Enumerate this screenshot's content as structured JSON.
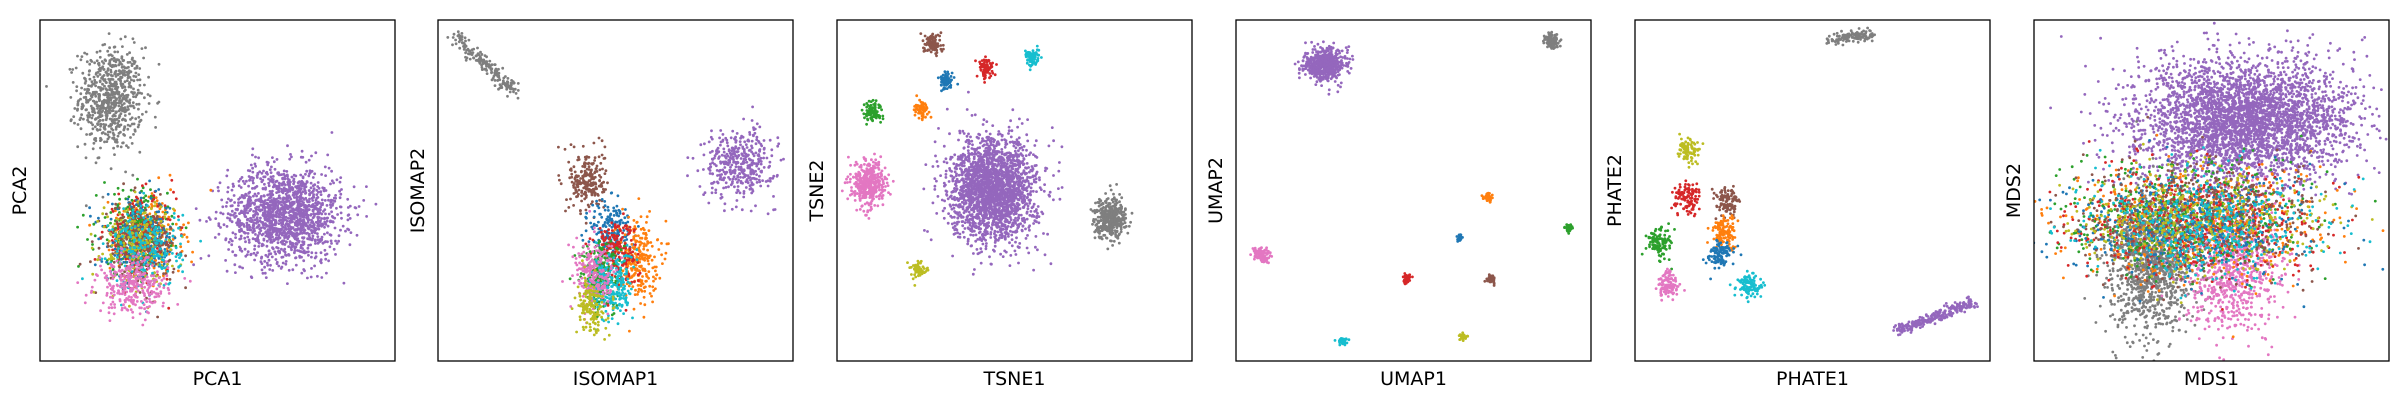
{
  "palette": {
    "blue": "#1f77b4",
    "orange": "#ff7f0e",
    "green": "#2ca02c",
    "red": "#d62728",
    "purple": "#9467bd",
    "brown": "#8c564b",
    "pink": "#e377c2",
    "gray": "#7f7f7f",
    "olive": "#bcbd22",
    "cyan": "#17becf"
  },
  "chart_data": [
    {
      "type": "scatter",
      "title": "",
      "xlabel": "PCA1",
      "ylabel": "PCA2",
      "xlim": [
        0,
        1
      ],
      "ylim": [
        0,
        1
      ],
      "grid": false,
      "ticks": false,
      "clusters": [
        {
          "color": "gray",
          "center": [
            0.2,
            0.77
          ],
          "spread": [
            0.045,
            0.075
          ],
          "n": 700
        },
        {
          "color": "purple",
          "center": [
            0.69,
            0.43
          ],
          "spread": [
            0.08,
            0.07
          ],
          "n": 1500
        },
        {
          "color": "orange",
          "center": [
            0.3,
            0.37
          ],
          "spread": [
            0.05,
            0.06
          ],
          "n": 250
        },
        {
          "color": "green",
          "center": [
            0.26,
            0.38
          ],
          "spread": [
            0.05,
            0.06
          ],
          "n": 250
        },
        {
          "color": "red",
          "center": [
            0.28,
            0.36
          ],
          "spread": [
            0.05,
            0.06
          ],
          "n": 220
        },
        {
          "color": "blue",
          "center": [
            0.29,
            0.35
          ],
          "spread": [
            0.05,
            0.06
          ],
          "n": 220
        },
        {
          "color": "brown",
          "center": [
            0.28,
            0.34
          ],
          "spread": [
            0.05,
            0.06
          ],
          "n": 220
        },
        {
          "color": "olive",
          "center": [
            0.27,
            0.35
          ],
          "spread": [
            0.05,
            0.06
          ],
          "n": 200
        },
        {
          "color": "cyan",
          "center": [
            0.3,
            0.33
          ],
          "spread": [
            0.05,
            0.06
          ],
          "n": 200
        },
        {
          "color": "pink",
          "center": [
            0.26,
            0.22
          ],
          "spread": [
            0.05,
            0.04
          ],
          "n": 300
        }
      ]
    },
    {
      "type": "scatter",
      "title": "",
      "xlabel": "ISOMAP1",
      "ylabel": "ISOMAP2",
      "xlim": [
        0,
        1
      ],
      "ylim": [
        0,
        1
      ],
      "grid": false,
      "ticks": false,
      "clusters": [
        {
          "color": "gray",
          "shape": "line",
          "from": [
            0.05,
            0.95
          ],
          "to": [
            0.22,
            0.79
          ],
          "spread": [
            0.012,
            0.012
          ],
          "n": 180
        },
        {
          "color": "purple",
          "center": [
            0.85,
            0.58
          ],
          "spread": [
            0.05,
            0.05
          ],
          "n": 400
        },
        {
          "color": "brown",
          "center": [
            0.42,
            0.53
          ],
          "spread": [
            0.025,
            0.045
          ],
          "n": 220
        },
        {
          "color": "blue",
          "center": [
            0.49,
            0.38
          ],
          "spread": [
            0.03,
            0.05
          ],
          "n": 200
        },
        {
          "color": "orange",
          "center": [
            0.56,
            0.3
          ],
          "spread": [
            0.03,
            0.06
          ],
          "n": 250
        },
        {
          "color": "red",
          "center": [
            0.5,
            0.32
          ],
          "spread": [
            0.03,
            0.05
          ],
          "n": 200
        },
        {
          "color": "green",
          "center": [
            0.46,
            0.25
          ],
          "spread": [
            0.03,
            0.05
          ],
          "n": 220
        },
        {
          "color": "cyan",
          "center": [
            0.49,
            0.22
          ],
          "spread": [
            0.03,
            0.05
          ],
          "n": 220
        },
        {
          "color": "pink",
          "center": [
            0.44,
            0.25
          ],
          "spread": [
            0.03,
            0.05
          ],
          "n": 200
        },
        {
          "color": "olive",
          "center": [
            0.43,
            0.16
          ],
          "spread": [
            0.02,
            0.04
          ],
          "n": 150
        }
      ]
    },
    {
      "type": "scatter",
      "title": "",
      "xlabel": "TSNE1",
      "ylabel": "TSNE2",
      "xlim": [
        0,
        1
      ],
      "ylim": [
        0,
        1
      ],
      "grid": false,
      "ticks": false,
      "clusters": [
        {
          "color": "purple",
          "center": [
            0.44,
            0.5
          ],
          "spread": [
            0.06,
            0.075
          ],
          "n": 2200
        },
        {
          "color": "gray",
          "center": [
            0.77,
            0.42
          ],
          "spread": [
            0.022,
            0.03
          ],
          "n": 400
        },
        {
          "color": "pink",
          "center": [
            0.09,
            0.52
          ],
          "spread": [
            0.024,
            0.033
          ],
          "n": 400
        },
        {
          "color": "brown",
          "center": [
            0.27,
            0.93
          ],
          "spread": [
            0.012,
            0.015
          ],
          "n": 100
        },
        {
          "color": "red",
          "center": [
            0.42,
            0.86
          ],
          "spread": [
            0.01,
            0.014
          ],
          "n": 80
        },
        {
          "color": "cyan",
          "center": [
            0.55,
            0.89
          ],
          "spread": [
            0.01,
            0.013
          ],
          "n": 80
        },
        {
          "color": "blue",
          "center": [
            0.31,
            0.82
          ],
          "spread": [
            0.01,
            0.012
          ],
          "n": 70
        },
        {
          "color": "orange",
          "center": [
            0.24,
            0.74
          ],
          "spread": [
            0.01,
            0.013
          ],
          "n": 70
        },
        {
          "color": "green",
          "center": [
            0.1,
            0.73
          ],
          "spread": [
            0.012,
            0.015
          ],
          "n": 90
        },
        {
          "color": "olive",
          "center": [
            0.23,
            0.27
          ],
          "spread": [
            0.01,
            0.013
          ],
          "n": 60
        }
      ]
    },
    {
      "type": "scatter",
      "title": "",
      "xlabel": "UMAP1",
      "ylabel": "UMAP2",
      "xlim": [
        0,
        1
      ],
      "ylim": [
        0,
        1
      ],
      "grid": false,
      "ticks": false,
      "clusters": [
        {
          "color": "purple",
          "center": [
            0.25,
            0.87
          ],
          "spread": [
            0.028,
            0.022
          ],
          "n": 600
        },
        {
          "color": "gray",
          "center": [
            0.89,
            0.94
          ],
          "spread": [
            0.01,
            0.012
          ],
          "n": 120
        },
        {
          "color": "pink",
          "center": [
            0.07,
            0.31
          ],
          "spread": [
            0.012,
            0.01
          ],
          "n": 100
        },
        {
          "color": "orange",
          "center": [
            0.71,
            0.48
          ],
          "spread": [
            0.006,
            0.007
          ],
          "n": 40
        },
        {
          "color": "blue",
          "center": [
            0.63,
            0.36
          ],
          "spread": [
            0.005,
            0.006
          ],
          "n": 30
        },
        {
          "color": "green",
          "center": [
            0.94,
            0.39
          ],
          "spread": [
            0.006,
            0.006
          ],
          "n": 40
        },
        {
          "color": "red",
          "center": [
            0.48,
            0.24
          ],
          "spread": [
            0.006,
            0.006
          ],
          "n": 40
        },
        {
          "color": "brown",
          "center": [
            0.72,
            0.24
          ],
          "spread": [
            0.006,
            0.006
          ],
          "n": 40
        },
        {
          "color": "cyan",
          "center": [
            0.3,
            0.06
          ],
          "spread": [
            0.006,
            0.006
          ],
          "n": 30
        },
        {
          "color": "olive",
          "center": [
            0.64,
            0.07
          ],
          "spread": [
            0.005,
            0.005
          ],
          "n": 30
        }
      ]
    },
    {
      "type": "scatter",
      "title": "",
      "xlabel": "PHATE1",
      "ylabel": "PHATE2",
      "xlim": [
        0,
        1
      ],
      "ylim": [
        0,
        1
      ],
      "grid": false,
      "ticks": false,
      "clusters": [
        {
          "color": "gray",
          "shape": "line",
          "from": [
            0.55,
            0.94
          ],
          "to": [
            0.67,
            0.96
          ],
          "spread": [
            0.01,
            0.008
          ],
          "n": 120
        },
        {
          "color": "purple",
          "shape": "line",
          "from": [
            0.74,
            0.09
          ],
          "to": [
            0.95,
            0.17
          ],
          "spread": [
            0.01,
            0.008
          ],
          "n": 250
        },
        {
          "color": "olive",
          "center": [
            0.15,
            0.62
          ],
          "spread": [
            0.015,
            0.02
          ],
          "n": 90
        },
        {
          "color": "red",
          "center": [
            0.15,
            0.48
          ],
          "spread": [
            0.018,
            0.022
          ],
          "n": 110
        },
        {
          "color": "brown",
          "center": [
            0.26,
            0.47
          ],
          "spread": [
            0.018,
            0.02
          ],
          "n": 110
        },
        {
          "color": "green",
          "center": [
            0.07,
            0.35
          ],
          "spread": [
            0.016,
            0.022
          ],
          "n": 110
        },
        {
          "color": "orange",
          "center": [
            0.25,
            0.38
          ],
          "spread": [
            0.018,
            0.022
          ],
          "n": 120
        },
        {
          "color": "blue",
          "center": [
            0.24,
            0.31
          ],
          "spread": [
            0.018,
            0.02
          ],
          "n": 110
        },
        {
          "color": "pink",
          "center": [
            0.09,
            0.22
          ],
          "spread": [
            0.016,
            0.02
          ],
          "n": 110
        },
        {
          "color": "cyan",
          "center": [
            0.32,
            0.22
          ],
          "spread": [
            0.018,
            0.018
          ],
          "n": 100
        }
      ]
    },
    {
      "type": "scatter",
      "title": "",
      "xlabel": "MDS1",
      "ylabel": "MDS2",
      "xlim": [
        0,
        1
      ],
      "ylim": [
        0,
        1
      ],
      "grid": false,
      "ticks": false,
      "clusters": [
        {
          "color": "purple",
          "center": [
            0.59,
            0.71
          ],
          "spread": [
            0.15,
            0.09
          ],
          "n": 3500
        },
        {
          "color": "gray",
          "center": [
            0.33,
            0.28
          ],
          "spread": [
            0.06,
            0.1
          ],
          "n": 1200
        },
        {
          "color": "pink",
          "center": [
            0.56,
            0.28
          ],
          "spread": [
            0.07,
            0.1
          ],
          "n": 800
        },
        {
          "color": "orange",
          "center": [
            0.45,
            0.4
          ],
          "spread": [
            0.18,
            0.08
          ],
          "n": 500
        },
        {
          "color": "green",
          "center": [
            0.4,
            0.42
          ],
          "spread": [
            0.18,
            0.08
          ],
          "n": 500
        },
        {
          "color": "red",
          "center": [
            0.45,
            0.41
          ],
          "spread": [
            0.18,
            0.08
          ],
          "n": 450
        },
        {
          "color": "blue",
          "center": [
            0.44,
            0.4
          ],
          "spread": [
            0.18,
            0.08
          ],
          "n": 450
        },
        {
          "color": "brown",
          "center": [
            0.47,
            0.42
          ],
          "spread": [
            0.17,
            0.08
          ],
          "n": 450
        },
        {
          "color": "olive",
          "center": [
            0.45,
            0.41
          ],
          "spread": [
            0.17,
            0.08
          ],
          "n": 400
        },
        {
          "color": "cyan",
          "center": [
            0.48,
            0.4
          ],
          "spread": [
            0.17,
            0.08
          ],
          "n": 400
        }
      ]
    }
  ]
}
